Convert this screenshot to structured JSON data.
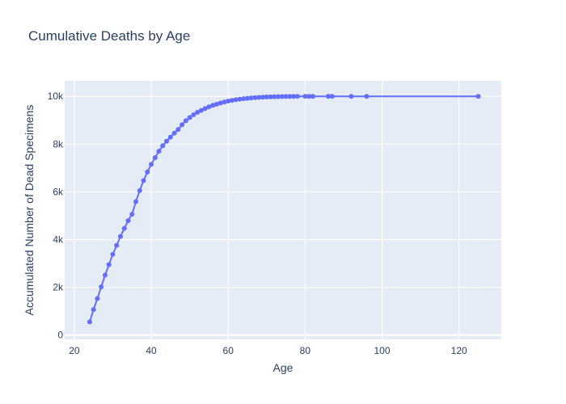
{
  "chart_data": {
    "type": "line",
    "mode": "lines+markers",
    "title": "Cumulative Deaths by Age",
    "xlabel": "Age",
    "ylabel": "Accumulated Number of Dead Specimens",
    "xlim": [
      17.5,
      131
    ],
    "ylim": [
      -180,
      10650
    ],
    "x_ticks": [
      20,
      40,
      60,
      80,
      100,
      120
    ],
    "x_tick_labels": [
      "20",
      "40",
      "60",
      "80",
      "100",
      "120"
    ],
    "y_ticks": [
      0,
      2000,
      4000,
      6000,
      8000,
      10000
    ],
    "y_tick_labels": [
      "0",
      "2k",
      "4k",
      "6k",
      "8k",
      "10k"
    ],
    "grid": true,
    "colors": {
      "plot_bg": "#e5ecf6",
      "grid": "#ffffff",
      "series": "#636efa",
      "text": "#2a3f5f"
    },
    "series": [
      {
        "x": [
          24,
          25,
          26,
          27,
          28,
          29,
          30,
          31,
          32,
          33,
          34,
          35,
          36,
          37,
          38,
          39,
          40,
          41,
          42,
          43,
          44,
          45,
          46,
          47,
          48,
          49,
          50,
          51,
          52,
          53,
          54,
          55,
          56,
          57,
          58,
          59,
          60,
          61,
          62,
          63,
          64,
          65,
          66,
          67,
          68,
          69,
          70,
          71,
          72,
          73,
          74,
          75,
          76,
          77,
          78,
          80,
          81,
          82,
          86,
          87,
          92,
          96,
          125
        ],
        "y": [
          550,
          1070,
          1530,
          2020,
          2510,
          2950,
          3380,
          3760,
          4130,
          4470,
          4790,
          5060,
          5590,
          6050,
          6470,
          6830,
          7150,
          7430,
          7700,
          7930,
          8120,
          8290,
          8460,
          8610,
          8810,
          8980,
          9110,
          9230,
          9330,
          9410,
          9490,
          9560,
          9620,
          9670,
          9720,
          9760,
          9800,
          9830,
          9860,
          9880,
          9900,
          9915,
          9930,
          9945,
          9955,
          9965,
          9972,
          9978,
          9983,
          9987,
          9990,
          9993,
          9995,
          9997,
          9998,
          9999,
          9999,
          10000,
          10000,
          10000,
          10000,
          10000,
          10000
        ]
      }
    ]
  }
}
